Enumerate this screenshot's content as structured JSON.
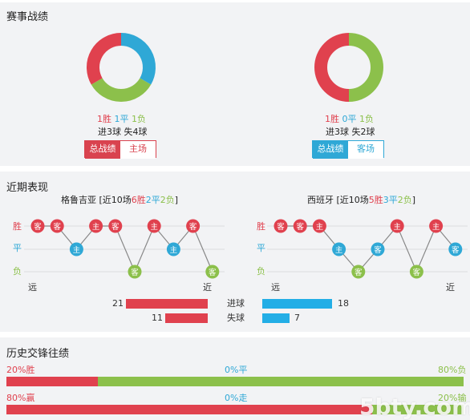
{
  "sections": {
    "record_title": "赛事战绩",
    "recent_title": "近期表现",
    "h2h_title": "历史交锋往绩"
  },
  "colors": {
    "win": "#e0414e",
    "draw": "#2fa8d6",
    "loss": "#8cc04b"
  },
  "record": {
    "left": {
      "win": "1胜",
      "draw": "1平",
      "loss": "1负",
      "goals": "进3球 失4球",
      "donut": {
        "win": 1,
        "draw": 1,
        "loss": 1
      },
      "tabs": [
        "总战绩",
        "主场"
      ]
    },
    "right": {
      "win": "1胜",
      "draw": "0平",
      "loss": "1负",
      "goals": "进3球 失2球",
      "donut": {
        "win": 1,
        "draw": 0,
        "loss": 1
      },
      "tabs": [
        "总战绩",
        "客场"
      ]
    }
  },
  "recent": {
    "left": {
      "team": "格鲁吉亚",
      "prefix": " [近10场",
      "win": "6胜",
      "draw": "2平",
      "loss": "2负",
      "suffix": "]",
      "results": [
        "胜",
        "胜",
        "平",
        "胜",
        "胜",
        "负",
        "胜",
        "平",
        "胜",
        "负"
      ],
      "venues": [
        "客",
        "客",
        "主",
        "主",
        "客",
        "客",
        "主",
        "主",
        "客",
        "客"
      ]
    },
    "right": {
      "team": "西班牙",
      "prefix": " [近10场",
      "win": "5胜",
      "draw": "3平",
      "loss": "2负",
      "suffix": "]",
      "results": [
        "胜",
        "胜",
        "胜",
        "平",
        "负",
        "平",
        "胜",
        "负",
        "胜",
        "平"
      ],
      "venues": [
        "客",
        "客",
        "主",
        "主",
        "客",
        "客",
        "主",
        "客",
        "主",
        "客"
      ]
    },
    "row_labels": [
      "胜",
      "平",
      "负"
    ],
    "axis_far": "远",
    "axis_near": "近"
  },
  "goals_compare": {
    "scored_label": "进球",
    "conceded_label": "失球",
    "left_scored": 21,
    "left_conceded": 11,
    "right_scored": 18,
    "right_conceded": 7,
    "max": 21
  },
  "h2h": {
    "row1": {
      "win": "20%胜",
      "draw": "0%平",
      "loss": "80%负",
      "win_frac": 0.2,
      "draw_frac": 0.0
    },
    "row2": {
      "win": "80%赢",
      "draw": "0%走",
      "loss": "20%输",
      "win_frac": 0.8,
      "draw_frac": 0.0
    }
  },
  "watermark": "5btycom"
}
